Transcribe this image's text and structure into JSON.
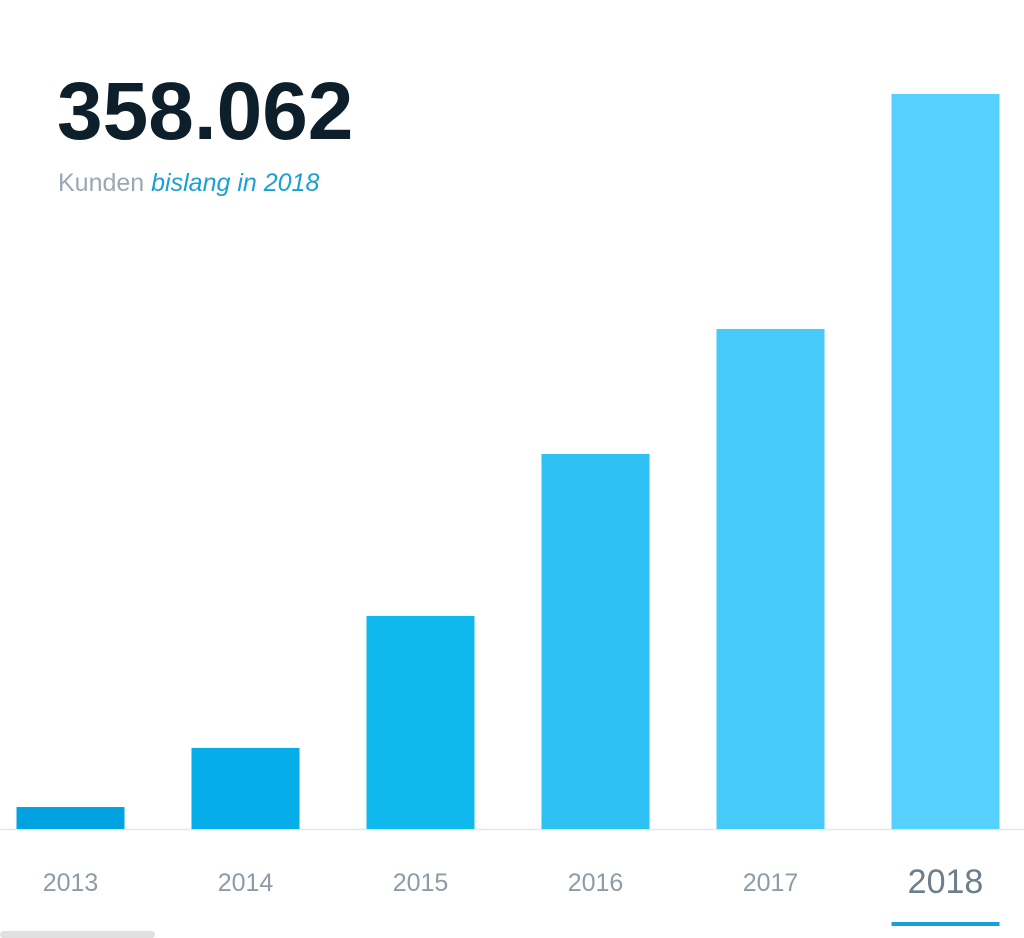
{
  "chart_data": {
    "type": "bar",
    "title": "358.062",
    "subtitle": "Kunden",
    "subtitle_highlight": "bislang in 2018",
    "categories": [
      "2013",
      "2014",
      "2015",
      "2016",
      "2017",
      "2018"
    ],
    "values": [
      10700,
      39500,
      103800,
      182700,
      243600,
      358062
    ],
    "colors": [
      "#00a3e0",
      "#05aee8",
      "#0fb9ee",
      "#2ec2f4",
      "#45cafa",
      "#55d0ff"
    ],
    "ylim": [
      0,
      358062
    ],
    "selected_index": 5
  }
}
